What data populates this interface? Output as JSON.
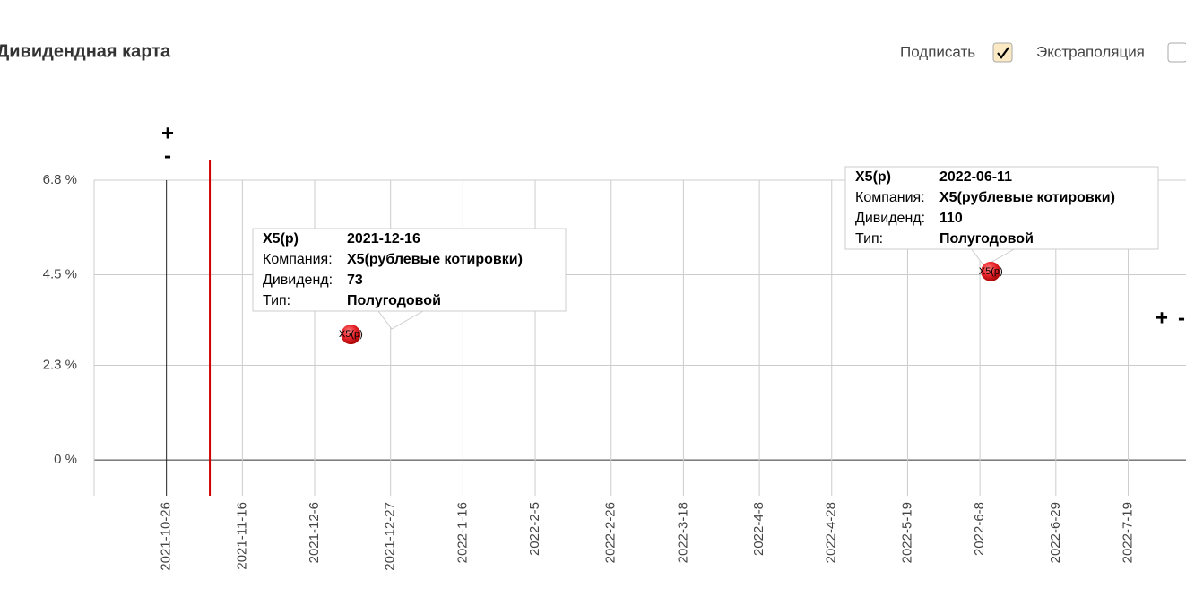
{
  "header": {
    "title": "Дивидендная карта",
    "controls": [
      {
        "label": "Подписать",
        "checked": true
      },
      {
        "label": "Экстраполяция",
        "checked": false
      }
    ]
  },
  "chart_data": {
    "type": "scatter",
    "x": [
      "2021-12-16",
      "2022-06-11"
    ],
    "values": [
      3.05,
      4.58
    ],
    "labels": [
      "X5(р)",
      "X5(р)"
    ],
    "color": "#e8242b",
    "tooltip_fields": [
      "Компания:",
      "Дивиденд:",
      "Тип:"
    ],
    "company": [
      "X5(рублевые котировки)",
      "X5(рублевые котировки)"
    ],
    "dividend": [
      73,
      110
    ],
    "dividend_type": [
      "Полугодовой",
      "Полугодовой"
    ],
    "current_date": "2021-11-07",
    "current_date_color": "#d00000",
    "zoom_controls": [
      "+",
      "-"
    ],
    "xlim": [
      "2021-10-06",
      "2022-08-04"
    ],
    "xticks": [
      "2021-10-26",
      "2021-11-16",
      "2021-12-6",
      "2021-12-27",
      "2022-1-16",
      "2022-2-5",
      "2022-2-26",
      "2022-3-18",
      "2022-4-8",
      "2022-4-28",
      "2022-5-19",
      "2022-6-8",
      "2022-6-29",
      "2022-7-19"
    ],
    "ylim": [
      -0.87,
      6.8
    ],
    "yticks": [
      {
        "value": 0,
        "label": "0 %"
      },
      {
        "value": 2.3,
        "label": "2.3 %"
      },
      {
        "value": 4.5,
        "label": "4.5 %"
      },
      {
        "value": 6.8,
        "label": "6.8 %"
      }
    ],
    "grid": true
  }
}
